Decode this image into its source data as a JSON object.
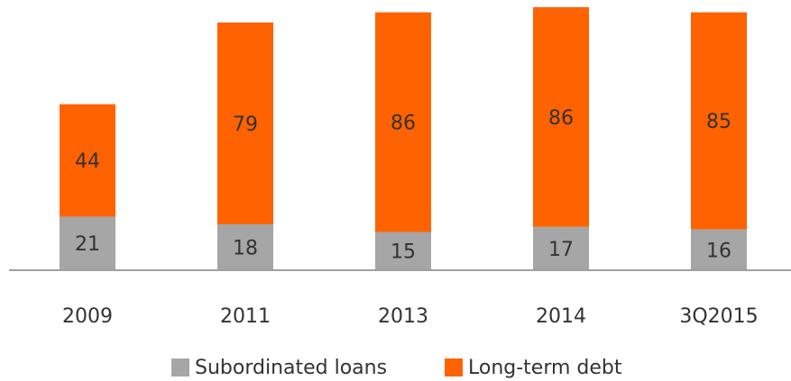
{
  "chart_data": {
    "type": "bar",
    "stacked": true,
    "categories": [
      "2009",
      "2011",
      "2013",
      "2014",
      "3Q2015"
    ],
    "series": [
      {
        "name": "Subordinated loans",
        "color": "#a6a6a6",
        "values": [
          21,
          18,
          15,
          17,
          16
        ]
      },
      {
        "name": "Long-term debt",
        "color": "#ff6200",
        "values": [
          44,
          79,
          86,
          86,
          85
        ]
      }
    ],
    "legend": "bottom"
  }
}
